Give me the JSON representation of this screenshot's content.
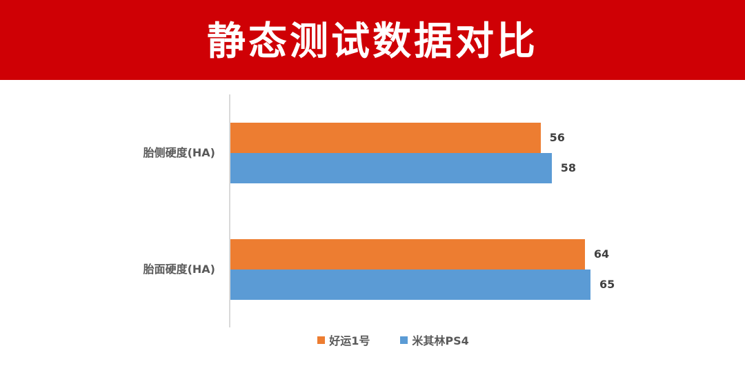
{
  "header": {
    "title": "静态测试数据对比",
    "bg_color": "#cf0005"
  },
  "chart_data": {
    "type": "bar",
    "orientation": "horizontal",
    "title": "静态测试数据对比",
    "categories": [
      "胎侧硬度(HA)",
      "胎面硬度(HA)"
    ],
    "series": [
      {
        "name": "好运1号",
        "color": "#ed7d31",
        "values": [
          56,
          64
        ]
      },
      {
        "name": "米其林PS4",
        "color": "#5b9bd5",
        "values": [
          58,
          65
        ]
      }
    ],
    "xlabel": "",
    "ylabel": "",
    "xlim": [
      0,
      67
    ],
    "grid": false,
    "data_labels": true,
    "legend_position": "bottom"
  },
  "labels": {
    "cat0": "胎侧硬度(HA)",
    "cat1": "胎面硬度(HA)",
    "v00": "56",
    "v01": "58",
    "v10": "64",
    "v11": "65",
    "legend0": "好运1号",
    "legend1": "米其林PS4"
  }
}
